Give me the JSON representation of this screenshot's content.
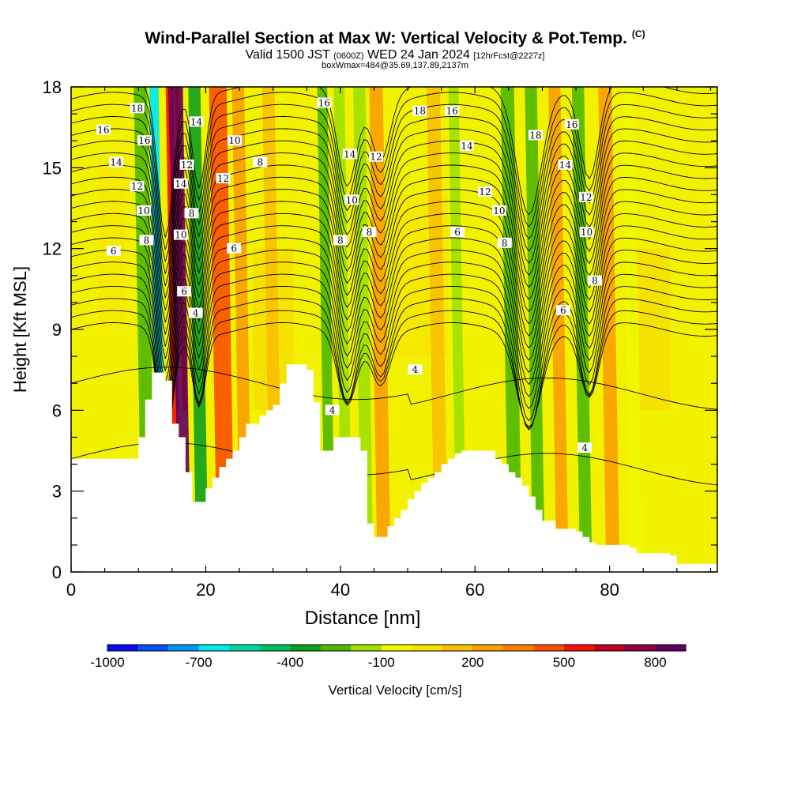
{
  "title": {
    "main": "Wind-Parallel Section at Max W: Vertical Velocity & Pot.Temp.",
    "copyright": "(C)",
    "valid": "Valid 1500 JST",
    "utc": "(0600Z)",
    "date": "WED 24 Jan 2024",
    "fcst": "[12hrFcst@2227z]",
    "box": "boxWmax=484@35.69,137.89,2137m"
  },
  "chart_data": {
    "type": "heatmap",
    "xlabel": "Distance [nm]",
    "ylabel": "Height [Kft MSL]",
    "xlim": [
      0,
      96
    ],
    "ylim": [
      0,
      18
    ],
    "xticks": [
      0,
      20,
      40,
      60,
      80
    ],
    "yticks": [
      0,
      3,
      6,
      9,
      12,
      15,
      18
    ],
    "terrain_kft": [
      [
        0,
        4.2
      ],
      [
        7,
        4.2
      ],
      [
        8,
        4.2
      ],
      [
        9,
        4.2
      ],
      [
        10,
        5.0
      ],
      [
        11,
        6.4
      ],
      [
        12,
        7.4
      ],
      [
        14,
        7.1
      ],
      [
        15,
        5.5
      ],
      [
        16,
        5.0
      ],
      [
        17,
        3.7
      ],
      [
        18,
        2.6
      ],
      [
        19,
        2.6
      ],
      [
        20,
        3.1
      ],
      [
        21,
        3.5
      ],
      [
        22,
        3.9
      ],
      [
        23,
        4.2
      ],
      [
        24,
        4.5
      ],
      [
        25,
        5.0
      ],
      [
        26,
        5.5
      ],
      [
        27,
        5.5
      ],
      [
        28,
        5.8
      ],
      [
        29,
        6.0
      ],
      [
        30,
        6.2
      ],
      [
        31,
        7.0
      ],
      [
        32,
        7.7
      ],
      [
        33,
        7.7
      ],
      [
        34,
        7.7
      ],
      [
        35,
        7.5
      ],
      [
        36,
        6.3
      ],
      [
        37,
        4.5
      ],
      [
        38,
        4.5
      ],
      [
        39,
        5.0
      ],
      [
        40,
        5.0
      ],
      [
        41,
        5.0
      ],
      [
        42,
        5.0
      ],
      [
        43,
        4.5
      ],
      [
        44,
        1.8
      ],
      [
        45,
        1.3
      ],
      [
        46,
        1.3
      ],
      [
        47,
        1.7
      ],
      [
        48,
        2.0
      ],
      [
        49,
        2.3
      ],
      [
        50,
        2.7
      ],
      [
        51,
        3.0
      ],
      [
        52,
        3.3
      ],
      [
        53,
        3.5
      ],
      [
        54,
        3.7
      ],
      [
        55,
        4.0
      ],
      [
        56,
        4.2
      ],
      [
        57,
        4.4
      ],
      [
        58,
        4.5
      ],
      [
        59,
        4.5
      ],
      [
        60,
        4.5
      ],
      [
        61,
        4.5
      ],
      [
        62,
        4.5
      ],
      [
        63,
        4.2
      ],
      [
        64,
        4.0
      ],
      [
        65,
        3.7
      ],
      [
        66,
        3.5
      ],
      [
        67,
        3.2
      ],
      [
        68,
        2.8
      ],
      [
        69,
        2.3
      ],
      [
        70,
        1.9
      ],
      [
        71,
        1.9
      ],
      [
        72,
        1.6
      ],
      [
        73,
        1.6
      ],
      [
        74,
        1.6
      ],
      [
        75,
        1.5
      ],
      [
        76,
        1.3
      ],
      [
        77,
        1.1
      ],
      [
        78,
        1.0
      ],
      [
        79,
        1.0
      ],
      [
        80,
        1.0
      ],
      [
        81,
        1.0
      ],
      [
        82,
        1.0
      ],
      [
        83,
        0.9
      ],
      [
        84,
        0.7
      ],
      [
        85,
        0.7
      ],
      [
        86,
        0.7
      ],
      [
        87,
        0.7
      ],
      [
        88,
        0.7
      ],
      [
        89,
        0.6
      ],
      [
        90,
        0.3
      ],
      [
        96,
        0.3
      ]
    ],
    "vertical_velocity_bands": [
      {
        "x": 11.5,
        "width": 2.0,
        "w_cms": -250
      },
      {
        "x": 13.5,
        "width": 1.4,
        "w_cms": -700
      },
      {
        "x": 15.8,
        "width": 1.1,
        "w_cms": 500
      },
      {
        "x": 16.9,
        "width": 1.8,
        "w_cms": 800
      },
      {
        "x": 19.5,
        "width": 1.8,
        "w_cms": -350
      },
      {
        "x": 23.0,
        "width": 2.6,
        "w_cms": 400
      },
      {
        "x": 26.0,
        "width": 1.8,
        "w_cms": 200
      },
      {
        "x": 30.5,
        "width": 1.8,
        "w_cms": 150
      },
      {
        "x": 38.5,
        "width": 1.5,
        "w_cms": -300
      },
      {
        "x": 41.0,
        "width": 1.6,
        "w_cms": -150
      },
      {
        "x": 44.0,
        "width": 1.8,
        "w_cms": -200
      },
      {
        "x": 46.5,
        "width": 2.0,
        "w_cms": 200
      },
      {
        "x": 55.0,
        "width": 2.0,
        "w_cms": 100
      },
      {
        "x": 58.0,
        "width": 1.5,
        "w_cms": -150
      },
      {
        "x": 66.0,
        "width": 2.0,
        "w_cms": -250
      },
      {
        "x": 69.5,
        "width": 1.8,
        "w_cms": -300
      },
      {
        "x": 73.0,
        "width": 1.8,
        "w_cms": 200
      },
      {
        "x": 76.5,
        "width": 1.8,
        "w_cms": -300
      },
      {
        "x": 80.5,
        "width": 2.0,
        "w_cms": 250
      },
      {
        "x": 84.0,
        "width": 1.8,
        "w_cms": -100
      }
    ],
    "theta_contour_labels": [
      {
        "x": 4.8,
        "y": 16.4,
        "label": "16"
      },
      {
        "x": 9.8,
        "y": 17.2,
        "label": "18"
      },
      {
        "x": 6.7,
        "y": 15.2,
        "label": "14"
      },
      {
        "x": 10.9,
        "y": 16.0,
        "label": "16"
      },
      {
        "x": 9.8,
        "y": 14.3,
        "label": "12"
      },
      {
        "x": 10.8,
        "y": 13.4,
        "label": "10"
      },
      {
        "x": 11.2,
        "y": 12.3,
        "label": "8"
      },
      {
        "x": 6.3,
        "y": 11.9,
        "label": "6"
      },
      {
        "x": 18.6,
        "y": 16.7,
        "label": "14"
      },
      {
        "x": 17.2,
        "y": 15.1,
        "label": "12"
      },
      {
        "x": 16.3,
        "y": 14.4,
        "label": "14"
      },
      {
        "x": 17.9,
        "y": 13.3,
        "label": "8"
      },
      {
        "x": 16.3,
        "y": 12.5,
        "label": "10"
      },
      {
        "x": 16.8,
        "y": 10.4,
        "label": "6"
      },
      {
        "x": 18.5,
        "y": 9.6,
        "label": "4"
      },
      {
        "x": 24.3,
        "y": 16.0,
        "label": "10"
      },
      {
        "x": 22.6,
        "y": 14.6,
        "label": "12"
      },
      {
        "x": 28.1,
        "y": 15.2,
        "label": "8"
      },
      {
        "x": 24.2,
        "y": 12.0,
        "label": "6"
      },
      {
        "x": 37.6,
        "y": 17.4,
        "label": "16"
      },
      {
        "x": 41.4,
        "y": 15.5,
        "label": "14"
      },
      {
        "x": 45.3,
        "y": 15.4,
        "label": "12"
      },
      {
        "x": 41.7,
        "y": 13.8,
        "label": "10"
      },
      {
        "x": 44.3,
        "y": 12.6,
        "label": "8"
      },
      {
        "x": 40.0,
        "y": 12.3,
        "label": "8"
      },
      {
        "x": 51.8,
        "y": 17.1,
        "label": "18"
      },
      {
        "x": 56.6,
        "y": 17.1,
        "label": "16"
      },
      {
        "x": 58.8,
        "y": 15.8,
        "label": "14"
      },
      {
        "x": 61.5,
        "y": 14.1,
        "label": "12"
      },
      {
        "x": 63.6,
        "y": 13.4,
        "label": "10"
      },
      {
        "x": 64.4,
        "y": 12.2,
        "label": "8"
      },
      {
        "x": 57.4,
        "y": 12.6,
        "label": "6"
      },
      {
        "x": 51.1,
        "y": 7.5,
        "label": "4"
      },
      {
        "x": 38.8,
        "y": 6.0,
        "label": "4"
      },
      {
        "x": 69.0,
        "y": 16.2,
        "label": "18"
      },
      {
        "x": 74.4,
        "y": 16.6,
        "label": "16"
      },
      {
        "x": 73.4,
        "y": 15.1,
        "label": "14"
      },
      {
        "x": 76.5,
        "y": 13.9,
        "label": "12"
      },
      {
        "x": 76.6,
        "y": 12.6,
        "label": "10"
      },
      {
        "x": 77.8,
        "y": 10.8,
        "label": "8"
      },
      {
        "x": 73.1,
        "y": 9.7,
        "label": "6"
      },
      {
        "x": 76.3,
        "y": 4.6,
        "label": "4"
      }
    ],
    "colorbar": {
      "label": "Vertical Velocity [cm/s]",
      "min": -1000,
      "max": 900,
      "step": 100,
      "tick_labels": [
        -1000,
        -700,
        -400,
        -100,
        200,
        500,
        800
      ],
      "colors": [
        "#0a0af0",
        "#0050f0",
        "#0098f0",
        "#00e8f0",
        "#00d8a0",
        "#00c060",
        "#10a020",
        "#50b800",
        "#a0e000",
        "#f0f800",
        "#f8e000",
        "#f8c000",
        "#f8a000",
        "#f88000",
        "#f85000",
        "#f81000",
        "#c00020",
        "#900040",
        "#600060"
      ]
    }
  }
}
